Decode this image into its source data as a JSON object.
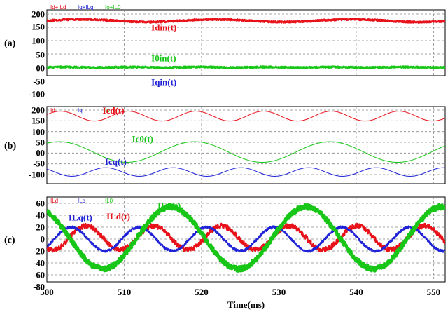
{
  "chart_data": [
    {
      "type": "line",
      "panel_label": "(a)",
      "ylim": [
        -110,
        200
      ],
      "yticks": [
        200,
        150,
        100,
        50,
        "00",
        -50,
        -100
      ],
      "grid": true,
      "legend_position": "top-left",
      "legend": [
        "Id+ILd",
        "Iq+ILq",
        "Io+IL0"
      ],
      "series": [
        {
          "name": "Id+ILd",
          "color": "#e8121b",
          "mean": 175,
          "amp": 5,
          "period": 17.5,
          "phase": 0,
          "noise": 3,
          "width": 2.6
        },
        {
          "name": "Iq+ILq",
          "color": "#1f22d6",
          "mean": -92,
          "amp": 5,
          "period": 17.5,
          "phase": 1.8,
          "noise": 2,
          "width": 2.2
        },
        {
          "name": "Io+IL0",
          "color": "#17c617",
          "mean": 0,
          "amp": 1,
          "period": 8.75,
          "phase": 0,
          "noise": 3,
          "width": 2.6
        }
      ],
      "annotations": [
        {
          "text": "Idin(t)",
          "x": 513.5,
          "y": 138,
          "color": "#e8121b"
        },
        {
          "text": "I0in(t)",
          "x": 513.5,
          "y": 22,
          "color": "#17c617"
        },
        {
          "text": "Iqin(t)",
          "x": 513.5,
          "y": -67,
          "color": "#1f22d6"
        }
      ]
    },
    {
      "type": "line",
      "panel_label": "(b)",
      "ylim": [
        -112,
        200
      ],
      "yticks": [
        200,
        150,
        100,
        50,
        "00",
        -50,
        -100
      ],
      "grid": true,
      "legend_position": "top-left",
      "legend": [
        "Id",
        "Iq",
        "Io"
      ],
      "series": [
        {
          "name": "Id",
          "color": "#e8121b",
          "mean": 172,
          "amp": 23,
          "period": 8.75,
          "phase": 0.3,
          "noise": 0,
          "width": 1
        },
        {
          "name": "Iq",
          "color": "#1f22d6",
          "mean": -88,
          "amp": 20,
          "period": 8.75,
          "phase": 2.4,
          "noise": 0,
          "width": 1
        },
        {
          "name": "Io",
          "color": "#17c617",
          "mean": 5,
          "amp": 48,
          "period": 17.5,
          "phase": 1.0,
          "noise": 0,
          "width": 1
        }
      ],
      "annotations": [
        {
          "text": "Icd(t)",
          "x": 507.2,
          "y": 183,
          "color": "#e8121b"
        },
        {
          "text": "Ic0(t)",
          "x": 511.0,
          "y": 52,
          "color": "#17c617"
        },
        {
          "text": "Icq(t)",
          "x": 507.5,
          "y": -55,
          "color": "#1f22d6"
        }
      ]
    },
    {
      "type": "line",
      "panel_label": "(c)",
      "ylim": [
        -80,
        60
      ],
      "yticks": [
        60,
        40,
        20,
        0,
        -20,
        -40,
        -60,
        -80
      ],
      "grid": true,
      "legend_position": "top-left",
      "legend": [
        "ILd",
        "ILq",
        "IL0"
      ],
      "xlim": [
        500,
        551.5
      ],
      "xticks": [
        500,
        510,
        520,
        530,
        540,
        550
      ],
      "xlabel": "Time(ms)",
      "series": [
        {
          "name": "ILd",
          "color": "#e8121b",
          "mean": 2,
          "amp": 20,
          "period": 8.75,
          "phase": 4.2,
          "noise": 4,
          "width": 2.4
        },
        {
          "name": "ILq",
          "color": "#1f22d6",
          "mean": 0,
          "amp": 20,
          "period": 8.75,
          "phase": 5.6,
          "noise": 2,
          "width": 2.2
        },
        {
          "name": "IL0",
          "color": "#17c617",
          "mean": 2,
          "amp": 52,
          "period": 17.5,
          "phase": 2.1,
          "noise": 4,
          "width": 4.2
        }
      ],
      "annotations": [
        {
          "text": "ILq(t)",
          "x": 502.8,
          "y": 31,
          "color": "#1f22d6"
        },
        {
          "text": "ILd(t)",
          "x": 507.7,
          "y": 33,
          "color": "#e8121b"
        },
        {
          "text": "IL0(t)",
          "x": 514.3,
          "y": 51,
          "color": "#17c617"
        }
      ]
    }
  ]
}
